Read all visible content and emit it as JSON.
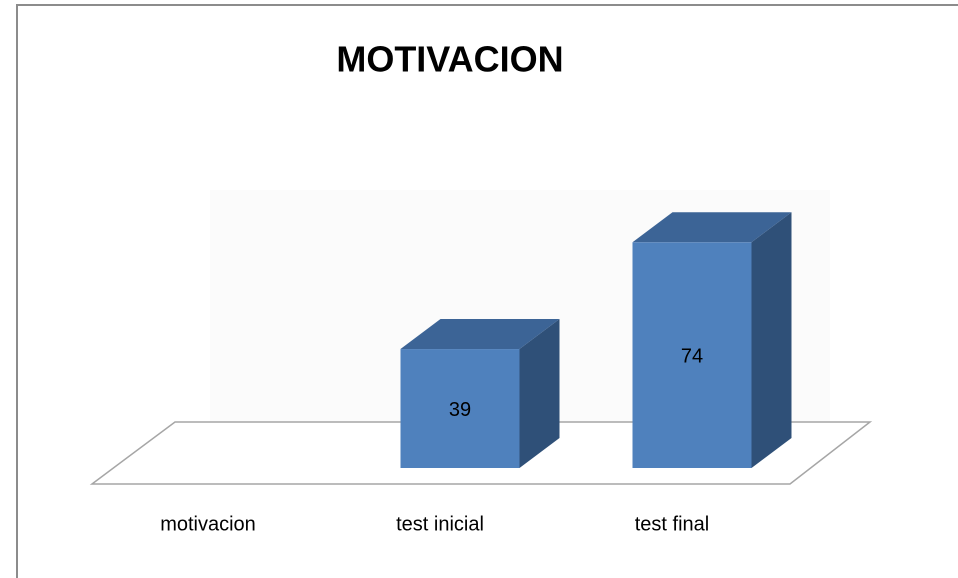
{
  "chart_data": {
    "type": "bar",
    "title": "MOTIVACION",
    "categories": [
      "motivacion",
      "test inicial",
      "test final"
    ],
    "values": [
      null,
      39,
      74
    ],
    "color": "#4f81bd"
  }
}
